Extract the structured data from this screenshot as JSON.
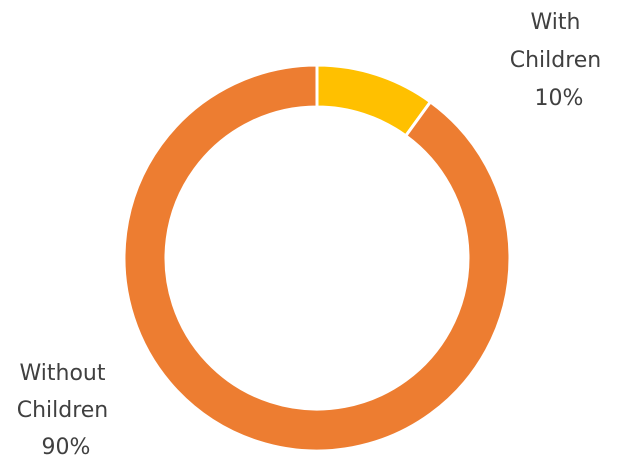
{
  "chart_data": {
    "type": "pie",
    "style": "donut",
    "title": "",
    "categories": [
      "With Children",
      "Without Children"
    ],
    "values": [
      10,
      90
    ],
    "unit": "%",
    "colors": [
      "#FFC000",
      "#ED7D31"
    ],
    "data_labels": [
      {
        "lines": [
          "With",
          "Children",
          "10%"
        ]
      },
      {
        "lines": [
          "Without",
          "Children",
          "90%"
        ]
      }
    ],
    "legend": "none",
    "grid": false
  }
}
